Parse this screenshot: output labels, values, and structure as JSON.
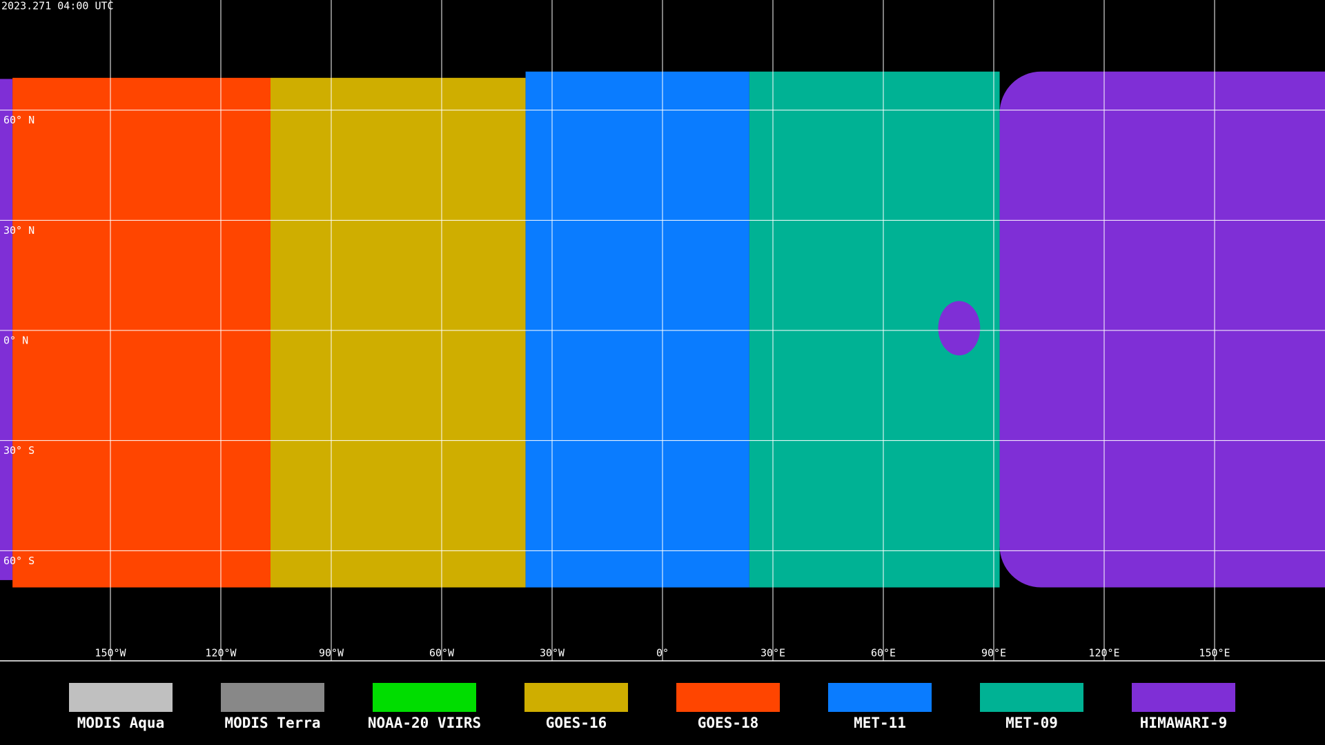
{
  "timestamp": "2023.271 04:00 UTC",
  "map": {
    "lat_ticks": [
      {
        "value": 60,
        "label": "60° N"
      },
      {
        "value": 30,
        "label": "30° N"
      },
      {
        "value": 0,
        "label": "0° N"
      },
      {
        "value": -30,
        "label": "30° S"
      },
      {
        "value": -60,
        "label": "60° S"
      }
    ],
    "lon_ticks": [
      {
        "value": -150,
        "label": "150°W"
      },
      {
        "value": -120,
        "label": "120°W"
      },
      {
        "value": -90,
        "label": "90°W"
      },
      {
        "value": -60,
        "label": "60°W"
      },
      {
        "value": -30,
        "label": "30°W"
      },
      {
        "value": 0,
        "label": "0°"
      },
      {
        "value": 30,
        "label": "30°E"
      },
      {
        "value": 60,
        "label": "60°E"
      },
      {
        "value": 90,
        "label": "90°E"
      },
      {
        "value": 120,
        "label": "120°E"
      },
      {
        "value": 150,
        "label": "150°E"
      }
    ]
  },
  "legend": [
    {
      "name": "MODIS Aqua",
      "color": "#c0c0c0"
    },
    {
      "name": "MODIS Terra",
      "color": "#888888"
    },
    {
      "name": "NOAA-20 VIIRS",
      "color": "#00dd00"
    },
    {
      "name": "GOES-16",
      "color": "#cfae00"
    },
    {
      "name": "GOES-18",
      "color": "#ff4500"
    },
    {
      "name": "MET-11",
      "color": "#0a7cff"
    },
    {
      "name": "MET-09",
      "color": "#00b294"
    },
    {
      "name": "HIMAWARI-9",
      "color": "#7f2fd6"
    }
  ]
}
